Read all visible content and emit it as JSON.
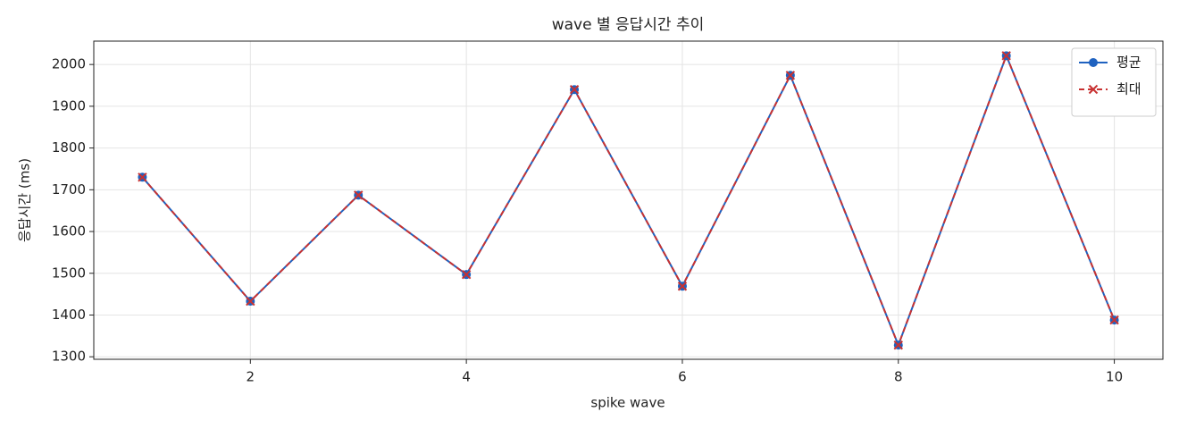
{
  "chart_data": {
    "type": "line",
    "title": "wave 별 응답시간 추이",
    "x_label": "spike wave",
    "y_label": "응답시간 (ms)",
    "x": [
      1,
      2,
      3,
      4,
      5,
      6,
      7,
      8,
      9,
      10
    ],
    "series": [
      {
        "name": "평균",
        "color": "#1f62c0",
        "dash": false,
        "marker": "circle",
        "values": [
          1730,
          1433,
          1687,
          1497,
          1940,
          1469,
          1974,
          1328,
          2021,
          1388
        ]
      },
      {
        "name": "최대",
        "color": "#c83232",
        "dash": true,
        "marker": "x",
        "values": [
          1730,
          1433,
          1687,
          1497,
          1940,
          1469,
          1974,
          1328,
          2021,
          1388
        ]
      }
    ],
    "xlim": [
      0.55,
      10.45
    ],
    "xticks": [
      2,
      4,
      6,
      8,
      10
    ],
    "ylim": [
      1294,
      2056
    ],
    "yticks": [
      1300,
      1400,
      1500,
      1600,
      1700,
      1800,
      1900,
      2000
    ],
    "grid": true,
    "legend": "upper right"
  }
}
